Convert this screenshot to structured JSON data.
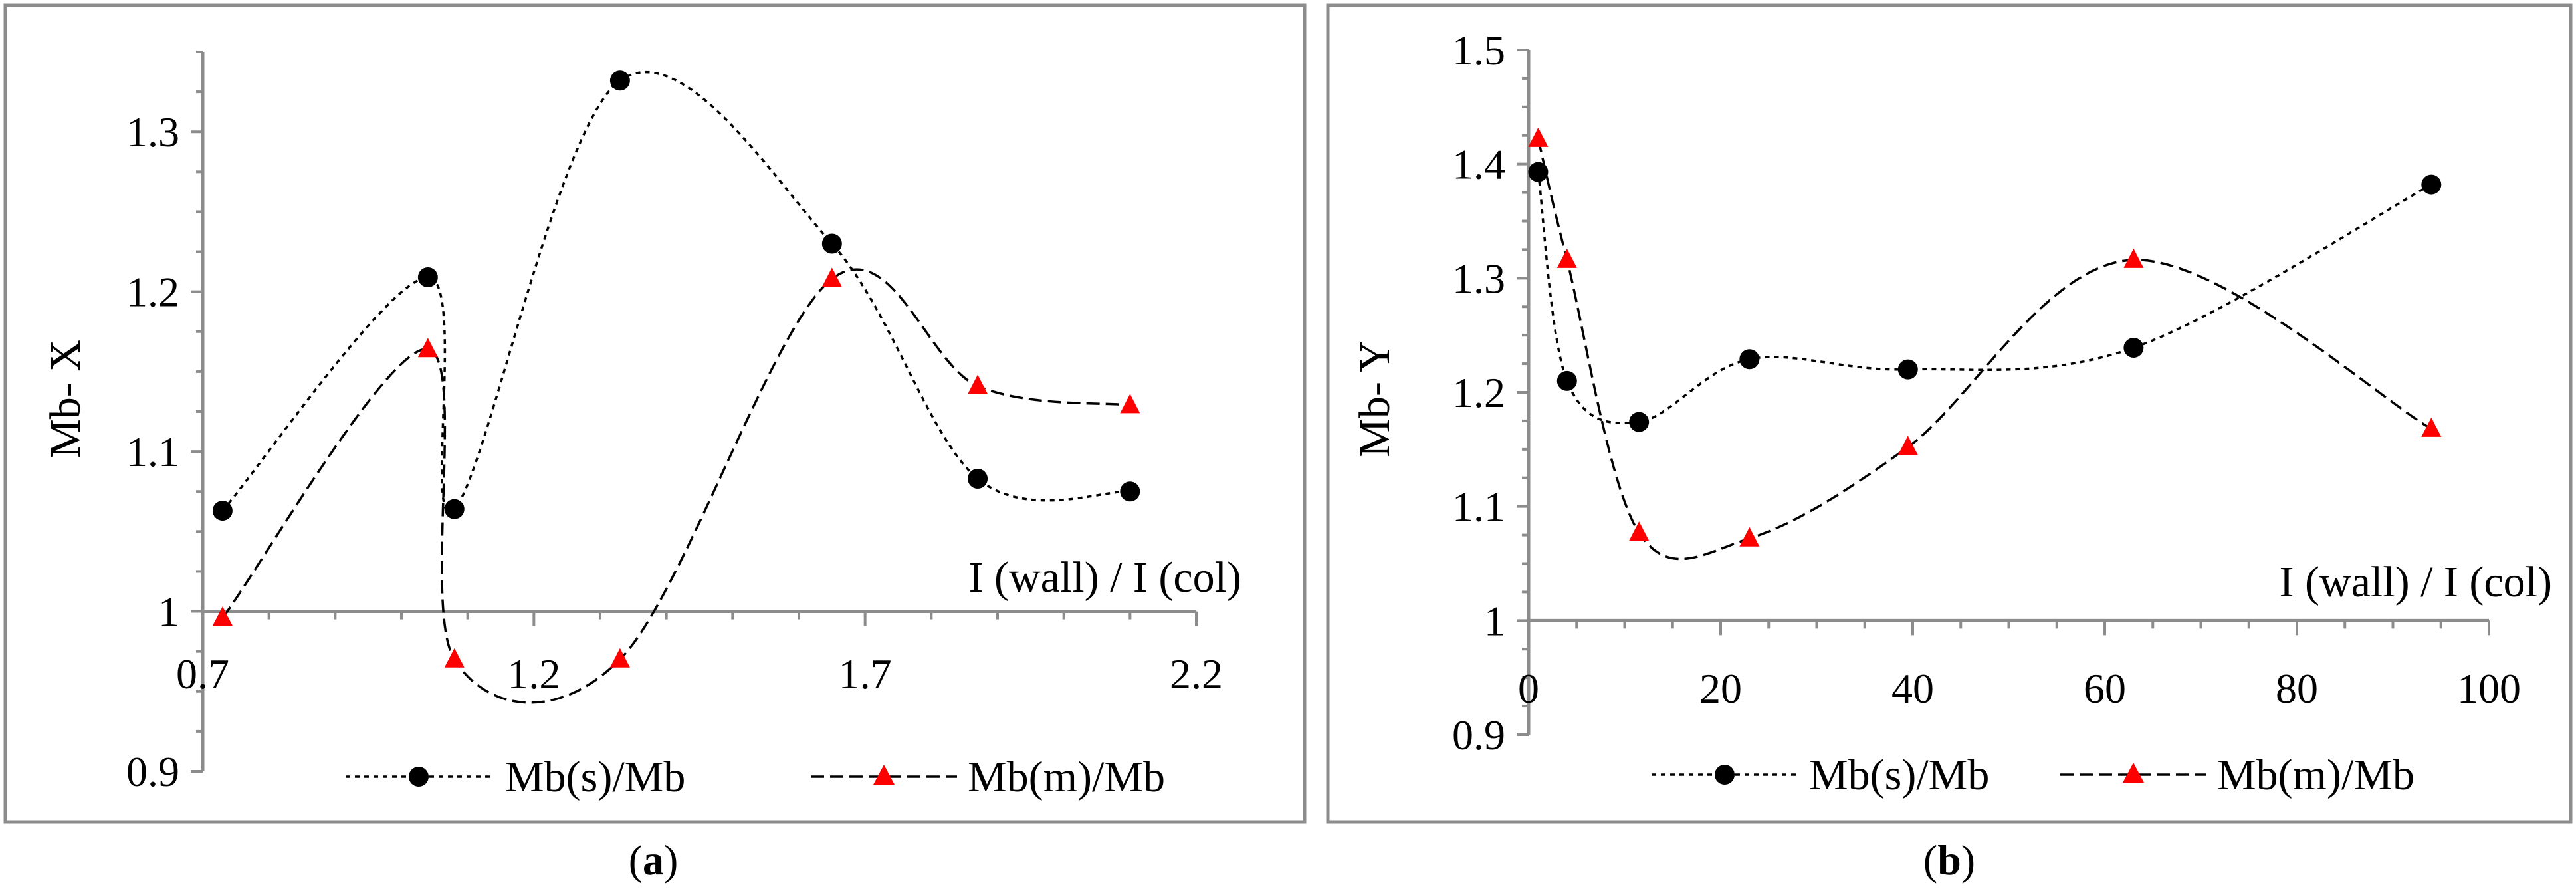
{
  "charts": [
    {
      "caption_letter": "a",
      "type": "line",
      "xlabel": "I (wall) / I (col)",
      "ylabel": "Mb- X",
      "xlim": [
        0.7,
        2.2
      ],
      "ylim": [
        0.9,
        1.35
      ],
      "x_ticks": [
        "0.7",
        "1.2",
        "1.7",
        "2.2"
      ],
      "y_ticks": [
        "0.9",
        "1",
        "1.1",
        "1.2",
        "1.3"
      ],
      "series": [
        {
          "name": "Mb(s)/Mb",
          "marker": "circle",
          "color": "#000000",
          "x": [
            0.73,
            1.04,
            1.08,
            1.33,
            1.65,
            1.87,
            2.1
          ],
          "y": [
            1.063,
            1.209,
            1.064,
            1.332,
            1.23,
            1.083,
            1.075
          ]
        },
        {
          "name": "Mb(m)/Mb",
          "marker": "triangle",
          "color": "#ff0000",
          "x": [
            0.73,
            1.04,
            1.08,
            1.33,
            1.65,
            1.87,
            2.1
          ],
          "y": [
            0.996,
            1.164,
            0.97,
            0.97,
            1.208,
            1.141,
            1.129
          ]
        }
      ]
    },
    {
      "caption_letter": "b",
      "type": "line",
      "xlabel": "I (wall) / I (col)",
      "ylabel": "Mb- Y",
      "xlim": [
        0,
        100
      ],
      "ylim": [
        0.9,
        1.5
      ],
      "x_ticks": [
        "0",
        "20",
        "40",
        "60",
        "80",
        "100"
      ],
      "y_ticks": [
        "0.9",
        "1",
        "1.1",
        "1.2",
        "1.3",
        "1.4",
        "1.5"
      ],
      "series": [
        {
          "name": "Mb(s)/Mb",
          "marker": "circle",
          "color": "#000000",
          "x": [
            1,
            4,
            11.5,
            23,
            39.5,
            63,
            94
          ],
          "y": [
            1.393,
            1.21,
            1.174,
            1.229,
            1.22,
            1.239,
            1.382
          ]
        },
        {
          "name": "Mb(m)/Mb",
          "marker": "triangle",
          "color": "#ff0000",
          "x": [
            1,
            4,
            11.5,
            23,
            39.5,
            63,
            94
          ],
          "y": [
            1.422,
            1.316,
            1.077,
            1.072,
            1.152,
            1.316,
            1.168
          ]
        }
      ]
    }
  ]
}
